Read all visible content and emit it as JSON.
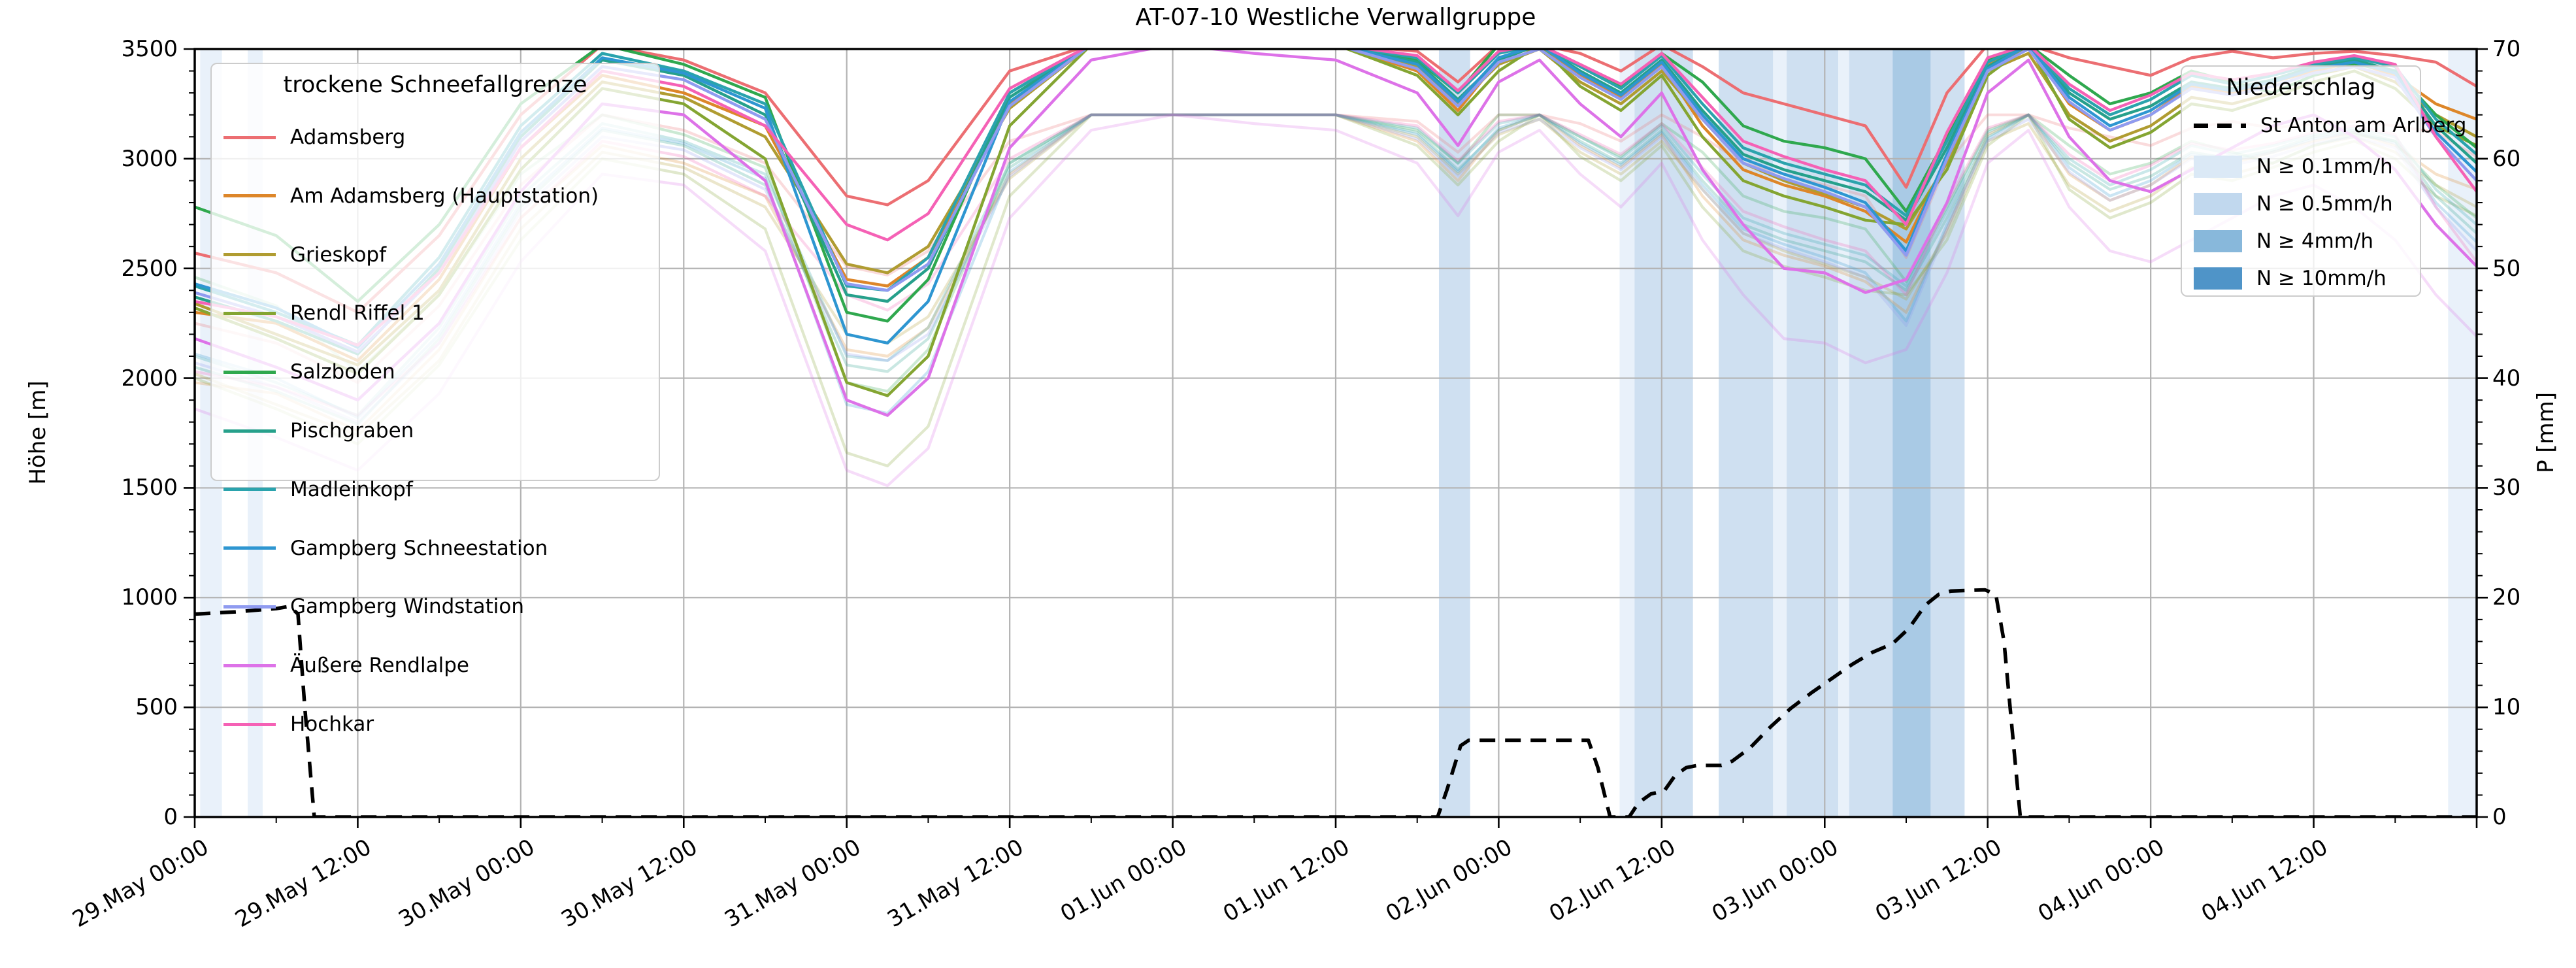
{
  "title": "AT-07-10 Westliche Verwallgruppe",
  "axes": {
    "left_label": "Höhe [m]",
    "right_label": "P [mm]",
    "left_ticks": [
      "0",
      "500",
      "1000",
      "1500",
      "2000",
      "2500",
      "3000",
      "3500"
    ],
    "right_ticks": [
      "0",
      "10",
      "20",
      "30",
      "40",
      "50",
      "60",
      "70"
    ],
    "x_tick_labels": [
      "29.May 00:00",
      "29.May 12:00",
      "30.May 00:00",
      "30.May 12:00",
      "31.May 00:00",
      "31.May 12:00",
      "01.Jun 00:00",
      "01.Jun 12:00",
      "02.Jun 00:00",
      "02.Jun 12:00",
      "03.Jun 00:00",
      "03.Jun 12:00",
      "04.Jun 00:00",
      "04.Jun 12:00"
    ],
    "x_tick_hours": [
      0,
      12,
      24,
      36,
      48,
      60,
      72,
      84,
      96,
      108,
      120,
      132,
      144,
      156
    ]
  },
  "legend_snowline": {
    "title": "trockene Schneefallgrenze"
  },
  "legend_precip": {
    "title": "Niederschlag",
    "line_item": {
      "label": "St Anton am Arlberg",
      "color": "#000000"
    }
  },
  "chart_data": {
    "type": "line",
    "title": "AT-07-10 Westliche Verwallgruppe",
    "xlabel": "",
    "ylabel_left": "Höhe [m]",
    "ylabel_right": "P [mm]",
    "x_unit": "hours since 29.May 00:00",
    "x_domain_hours": [
      0,
      168
    ],
    "ylim_left": [
      0,
      3500
    ],
    "ylim_right": [
      0,
      70
    ],
    "grid": true,
    "time_grid_hours": [
      0,
      6,
      12,
      18,
      24,
      30,
      36,
      42,
      48,
      51,
      54,
      60,
      66,
      72,
      78,
      84,
      90,
      93,
      96,
      99,
      102,
      105,
      108,
      111,
      114,
      117,
      120,
      123,
      126,
      129,
      132,
      135,
      138,
      141,
      144,
      147,
      150,
      153,
      156,
      159,
      162,
      165,
      168
    ],
    "series": [
      {
        "name": "Adamsberg",
        "color": "#ec6e72",
        "heights_m": [
          2570,
          2480,
          2300,
          2650,
          3200,
          3520,
          3450,
          3300,
          2830,
          2790,
          2900,
          3400,
          3520,
          3520,
          3520,
          3520,
          3490,
          3350,
          3520,
          3520,
          3480,
          3400,
          3520,
          3420,
          3300,
          3250,
          3200,
          3150,
          2870,
          3300,
          3520,
          3520,
          3460,
          3420,
          3380,
          3460,
          3490,
          3460,
          3480,
          3490,
          3470,
          3440,
          3330
        ]
      },
      {
        "name": "Am Adamsberg (Hauptstation)",
        "color": "#dd8629",
        "heights_m": [
          2300,
          2250,
          2080,
          2450,
          3050,
          3380,
          3300,
          3150,
          2450,
          2420,
          2550,
          3250,
          3520,
          3520,
          3520,
          3520,
          3400,
          3220,
          3450,
          3520,
          3380,
          3280,
          3430,
          3150,
          2950,
          2880,
          2830,
          2760,
          2620,
          3000,
          3430,
          3520,
          3250,
          3130,
          3200,
          3330,
          3300,
          3350,
          3400,
          3440,
          3380,
          3250,
          3180
        ]
      },
      {
        "name": "Grieskopf",
        "color": "#b09c31",
        "heights_m": [
          2340,
          2200,
          2060,
          2400,
          3000,
          3350,
          3280,
          3100,
          2520,
          2480,
          2600,
          3230,
          3520,
          3520,
          3520,
          3520,
          3420,
          3250,
          3430,
          3500,
          3350,
          3250,
          3400,
          3180,
          2980,
          2900,
          2840,
          2780,
          2680,
          2980,
          3400,
          3480,
          3200,
          3080,
          3150,
          3280,
          3250,
          3300,
          3380,
          3420,
          3350,
          3200,
          3100
        ]
      },
      {
        "name": "Rendl Riffel 1",
        "color": "#84a532",
        "heights_m": [
          2320,
          2180,
          2020,
          2380,
          2950,
          3320,
          3250,
          3000,
          1980,
          1920,
          2100,
          3150,
          3520,
          3520,
          3520,
          3520,
          3380,
          3200,
          3400,
          3520,
          3330,
          3220,
          3380,
          3100,
          2900,
          2830,
          2780,
          2720,
          2700,
          2950,
          3380,
          3520,
          3180,
          3050,
          3120,
          3250,
          3220,
          3280,
          3350,
          3400,
          3320,
          3150,
          3060
        ]
      },
      {
        "name": "Salzboden",
        "color": "#2fa84e",
        "heights_m": [
          2780,
          2650,
          2350,
          2700,
          3250,
          3520,
          3430,
          3280,
          2300,
          2260,
          2450,
          3300,
          3520,
          3520,
          3520,
          3520,
          3450,
          3300,
          3520,
          3520,
          3420,
          3330,
          3480,
          3350,
          3150,
          3080,
          3050,
          3000,
          2760,
          3100,
          3450,
          3520,
          3380,
          3250,
          3300,
          3400,
          3350,
          3300,
          3380,
          3430,
          3400,
          3200,
          3050
        ]
      },
      {
        "name": "Pischgraben",
        "color": "#26a08b",
        "heights_m": [
          2370,
          2260,
          2110,
          2500,
          3100,
          3450,
          3380,
          3200,
          2380,
          2350,
          2500,
          3280,
          3520,
          3520,
          3520,
          3520,
          3440,
          3270,
          3450,
          3520,
          3400,
          3300,
          3450,
          3220,
          3020,
          2950,
          2900,
          2850,
          2720,
          3050,
          3420,
          3520,
          3300,
          3180,
          3240,
          3350,
          3320,
          3360,
          3420,
          3450,
          3400,
          3150,
          2980
        ]
      },
      {
        "name": "Madleinkopf",
        "color": "#2aa3ad",
        "heights_m": [
          2420,
          2300,
          2150,
          2550,
          3150,
          3480,
          3400,
          3250,
          2420,
          2400,
          2550,
          3300,
          3520,
          3520,
          3520,
          3520,
          3460,
          3300,
          3480,
          3520,
          3420,
          3320,
          3470,
          3250,
          3050,
          2980,
          2930,
          2880,
          2740,
          3080,
          3440,
          3520,
          3320,
          3200,
          3270,
          3380,
          3340,
          3380,
          3430,
          3460,
          3420,
          3180,
          3020
        ]
      },
      {
        "name": "Gampberg Schneestation",
        "color": "#2e96d1",
        "heights_m": [
          2430,
          2320,
          2140,
          2520,
          3120,
          3460,
          3390,
          3230,
          2200,
          2160,
          2350,
          3260,
          3520,
          3520,
          3520,
          3520,
          3430,
          3260,
          3460,
          3520,
          3390,
          3290,
          3440,
          3200,
          3000,
          2930,
          2870,
          2800,
          2580,
          3020,
          3410,
          3520,
          3280,
          3150,
          3220,
          3340,
          3310,
          3350,
          3410,
          3440,
          3390,
          3120,
          2940
        ]
      },
      {
        "name": "Gampberg Windstation",
        "color": "#8f9bf0",
        "heights_m": [
          2390,
          2280,
          2120,
          2480,
          3080,
          3420,
          3360,
          3180,
          2430,
          2400,
          2520,
          3240,
          3520,
          3520,
          3520,
          3520,
          3410,
          3240,
          3440,
          3500,
          3370,
          3270,
          3420,
          3180,
          2980,
          2910,
          2850,
          2780,
          2560,
          3000,
          3400,
          3500,
          3260,
          3130,
          3200,
          3320,
          3290,
          3330,
          3390,
          3420,
          3370,
          3100,
          2900
        ]
      },
      {
        "name": "Äußere Rendlalpe",
        "color": "#dd72e8",
        "heights_m": [
          2180,
          2050,
          1900,
          2250,
          2850,
          3250,
          3200,
          2900,
          1900,
          1830,
          2000,
          3050,
          3450,
          3520,
          3480,
          3450,
          3300,
          3060,
          3350,
          3450,
          3250,
          3100,
          3300,
          2950,
          2700,
          2500,
          2480,
          2390,
          2450,
          2800,
          3300,
          3450,
          3100,
          2900,
          2850,
          2950,
          3050,
          3150,
          3200,
          3100,
          2950,
          2700,
          2510
        ]
      },
      {
        "name": "Hochkar",
        "color": "#f561b5",
        "heights_m": [
          2350,
          2280,
          2150,
          2480,
          3050,
          3400,
          3330,
          3150,
          2700,
          2630,
          2750,
          3320,
          3520,
          3520,
          3520,
          3520,
          3470,
          3310,
          3490,
          3520,
          3430,
          3340,
          3480,
          3280,
          3080,
          3010,
          2950,
          2900,
          2700,
          3120,
          3460,
          3520,
          3340,
          3220,
          3290,
          3390,
          3360,
          3390,
          3440,
          3470,
          3430,
          3100,
          2850
        ]
      }
    ],
    "ghost_offset_m": 320,
    "ghost_alpha": 0.25,
    "precip_line": {
      "name": "St Anton am Arlberg",
      "color": "#000000",
      "points_t_mm": [
        [
          0,
          18.5
        ],
        [
          3,
          18.7
        ],
        [
          6,
          19.0
        ],
        [
          7,
          19.2
        ],
        [
          7.6,
          18.5
        ],
        [
          8.1,
          10
        ],
        [
          8.8,
          0
        ],
        [
          12,
          0
        ],
        [
          30,
          0
        ],
        [
          60,
          0
        ],
        [
          90,
          0
        ],
        [
          91.5,
          0
        ],
        [
          92.2,
          2.5
        ],
        [
          93.2,
          6.5
        ],
        [
          93.8,
          7.0
        ],
        [
          102.6,
          7.0
        ],
        [
          103.3,
          4.5
        ],
        [
          104.2,
          0
        ],
        [
          105.6,
          0
        ],
        [
          106.3,
          1.3
        ],
        [
          107.2,
          2.1
        ],
        [
          108.2,
          2.4
        ],
        [
          109,
          3.8
        ],
        [
          109.8,
          4.5
        ],
        [
          110.6,
          4.7
        ],
        [
          112.4,
          4.7
        ],
        [
          113.2,
          5.1
        ],
        [
          114.5,
          6.3
        ],
        [
          116,
          8.2
        ],
        [
          117.5,
          9.9
        ],
        [
          119,
          11.3
        ],
        [
          120.5,
          12.6
        ],
        [
          122,
          13.9
        ],
        [
          123.5,
          15.0
        ],
        [
          125,
          15.8
        ],
        [
          126.2,
          17.2
        ],
        [
          127.4,
          19.3
        ],
        [
          128.4,
          20.3
        ],
        [
          129.3,
          20.6
        ],
        [
          131.8,
          20.7
        ],
        [
          132.6,
          20.3
        ],
        [
          133.2,
          16
        ],
        [
          133.8,
          8
        ],
        [
          134.4,
          0
        ],
        [
          140,
          0
        ],
        [
          150,
          0
        ],
        [
          160,
          0
        ],
        [
          168,
          0
        ]
      ]
    },
    "precip_bands": [
      {
        "t0": 0.4,
        "t1": 2.0,
        "level": 1
      },
      {
        "t0": 3.9,
        "t1": 5.0,
        "level": 1
      },
      {
        "t0": 91.6,
        "t1": 93.9,
        "level": 2
      },
      {
        "t0": 104.9,
        "t1": 106.0,
        "level": 1
      },
      {
        "t0": 106.0,
        "t1": 110.3,
        "level": 2
      },
      {
        "t0": 112.2,
        "t1": 116.2,
        "level": 2
      },
      {
        "t0": 116.2,
        "t1": 117.2,
        "level": 1
      },
      {
        "t0": 117.2,
        "t1": 121.0,
        "level": 2
      },
      {
        "t0": 121.0,
        "t1": 121.8,
        "level": 1
      },
      {
        "t0": 121.8,
        "t1": 125.0,
        "level": 2
      },
      {
        "t0": 125.0,
        "t1": 127.8,
        "level": 3
      },
      {
        "t0": 127.8,
        "t1": 130.3,
        "level": 2
      },
      {
        "t0": 165.9,
        "t1": 168,
        "level": 1
      }
    ],
    "band_levels": [
      {
        "label": "N ≥ 0.1mm/h",
        "color": "#dbe9f6",
        "fill": "#e9f1fa"
      },
      {
        "label": "N ≥ 0.5mm/h",
        "color": "#c1d8ee",
        "fill": "#cfe0f1"
      },
      {
        "label": "N ≥ 4mm/h",
        "color": "#88b8db",
        "fill": "#a9cae5"
      },
      {
        "label": "N ≥ 10mm/h",
        "color": "#4f94c8",
        "fill": "#6ca7d3"
      }
    ],
    "legend_position": {
      "snowline": "upper left",
      "precip": "upper right"
    },
    "grid_color": "#b3b3b3"
  }
}
